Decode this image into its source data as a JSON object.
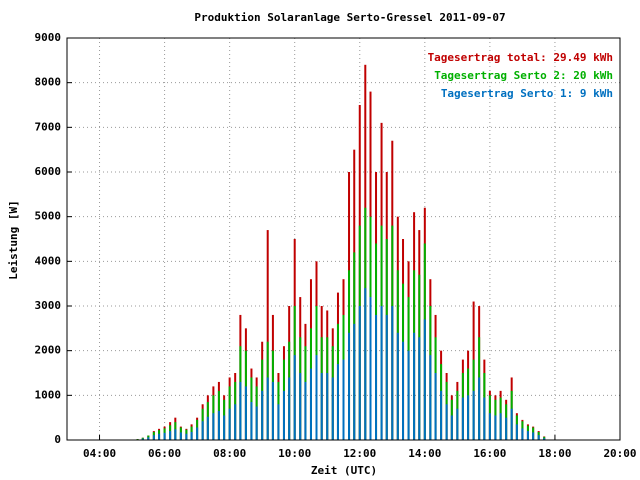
{
  "chart_data": {
    "type": "bar",
    "title": "Produktion Solaranlage Serto-Gressel 2011-09-07",
    "x_label": "Zeit (UTC)",
    "y_label": "Leistung [W]",
    "x": [
      5.17,
      5.33,
      5.5,
      5.67,
      5.83,
      6.0,
      6.17,
      6.33,
      6.5,
      6.67,
      6.83,
      7.0,
      7.17,
      7.33,
      7.5,
      7.67,
      7.83,
      8.0,
      8.17,
      8.33,
      8.5,
      8.67,
      8.83,
      9.0,
      9.17,
      9.33,
      9.5,
      9.67,
      9.83,
      10.0,
      10.17,
      10.33,
      10.5,
      10.67,
      10.83,
      11.0,
      11.17,
      11.33,
      11.5,
      11.67,
      11.83,
      12.0,
      12.17,
      12.33,
      12.5,
      12.67,
      12.83,
      13.0,
      13.17,
      13.33,
      13.5,
      13.67,
      13.83,
      14.0,
      14.17,
      14.33,
      14.5,
      14.67,
      14.83,
      15.0,
      15.17,
      15.33,
      15.5,
      15.67,
      15.83,
      16.0,
      16.17,
      16.33,
      16.5,
      16.67,
      16.83,
      17.0,
      17.17,
      17.33,
      17.5,
      17.67
    ],
    "series": [
      {
        "name": "Tagesertrag total: 29.49 kWh",
        "color": "#c00000",
        "values": [
          20,
          50,
          100,
          200,
          250,
          300,
          400,
          500,
          300,
          250,
          350,
          500,
          800,
          1000,
          1200,
          1300,
          1000,
          1400,
          1500,
          2800,
          2500,
          1600,
          1400,
          2200,
          4700,
          2800,
          1500,
          2100,
          3000,
          4500,
          3200,
          2600,
          3600,
          4000,
          3000,
          2900,
          2500,
          3300,
          3600,
          6000,
          6500,
          7500,
          8400,
          7800,
          6000,
          7100,
          6000,
          6700,
          5000,
          4500,
          4000,
          5100,
          4700,
          5200,
          3600,
          2800,
          2000,
          1500,
          1000,
          1300,
          1800,
          2000,
          3100,
          3000,
          1800,
          1100,
          1000,
          1100,
          900,
          1400,
          600,
          450,
          350,
          300,
          200,
          80
        ]
      },
      {
        "name": "Tagesertrag Serto 2: 20 kWh",
        "color": "#00b000",
        "values": [
          20,
          50,
          100,
          180,
          220,
          260,
          330,
          400,
          280,
          230,
          300,
          450,
          700,
          850,
          1000,
          1100,
          900,
          1200,
          1300,
          2100,
          2000,
          1400,
          1200,
          1800,
          2200,
          2000,
          1300,
          1800,
          2200,
          3000,
          2300,
          2100,
          2500,
          3000,
          2300,
          2300,
          2100,
          2600,
          2800,
          3800,
          4200,
          4800,
          5200,
          5000,
          4400,
          4800,
          4500,
          4800,
          3800,
          3500,
          3200,
          3800,
          3700,
          4400,
          3000,
          2300,
          1700,
          1300,
          900,
          1100,
          1500,
          1600,
          1800,
          2300,
          1500,
          1000,
          900,
          950,
          800,
          1100,
          550,
          420,
          320,
          280,
          180,
          70
        ]
      },
      {
        "name": "Tagesertrag Serto 1: 9 kWh",
        "color": "#0070c0",
        "values": [
          10,
          30,
          60,
          110,
          140,
          160,
          200,
          240,
          170,
          140,
          180,
          280,
          420,
          520,
          600,
          650,
          550,
          700,
          800,
          1300,
          1200,
          850,
          750,
          1100,
          1400,
          1300,
          800,
          1100,
          1400,
          1900,
          1500,
          1300,
          1600,
          1900,
          1500,
          1500,
          1400,
          1700,
          1800,
          2400,
          2600,
          3000,
          3400,
          3200,
          2800,
          3000,
          2800,
          3000,
          2400,
          2200,
          2000,
          2400,
          2300,
          2700,
          1900,
          1500,
          1100,
          800,
          550,
          700,
          950,
          1000,
          1100,
          1400,
          950,
          600,
          550,
          600,
          500,
          700,
          350,
          260,
          200,
          170,
          110,
          40
        ]
      }
    ],
    "xlim": [
      3,
      20
    ],
    "ylim": [
      0,
      9000
    ],
    "xticks": [
      {
        "value": 4,
        "label": "04:00"
      },
      {
        "value": 6,
        "label": "06:00"
      },
      {
        "value": 8,
        "label": "08:00"
      },
      {
        "value": 10,
        "label": "10:00"
      },
      {
        "value": 12,
        "label": "12:00"
      },
      {
        "value": 14,
        "label": "14:00"
      },
      {
        "value": 16,
        "label": "16:00"
      },
      {
        "value": 18,
        "label": "18:00"
      },
      {
        "value": 20,
        "label": "20:00"
      }
    ],
    "yticks": [
      0,
      1000,
      2000,
      3000,
      4000,
      5000,
      6000,
      7000,
      8000,
      9000
    ],
    "grid": true,
    "legend": "top-right"
  }
}
